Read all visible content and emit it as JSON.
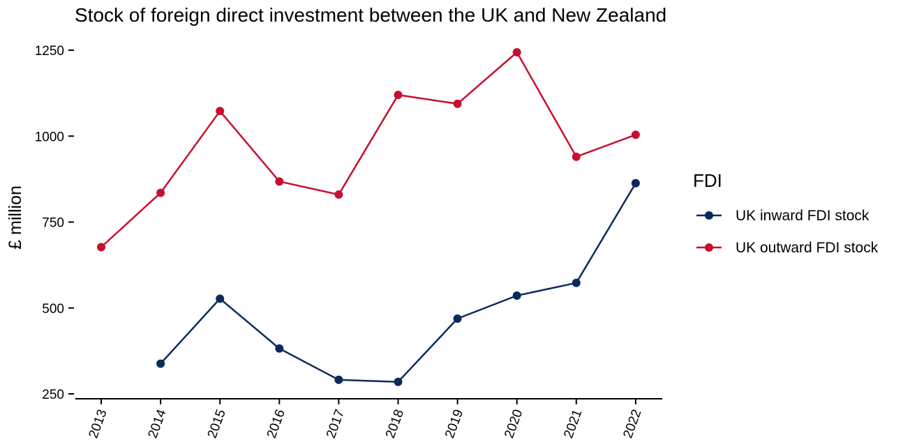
{
  "chart_data": {
    "type": "line",
    "title": "Stock of foreign direct investment between the UK and New Zealand",
    "xlabel": "",
    "ylabel": "£ million",
    "x": [
      "2013",
      "2014",
      "2015",
      "2016",
      "2017",
      "2018",
      "2019",
      "2020",
      "2021",
      "2022"
    ],
    "ylim": [
      250,
      1250
    ],
    "yticks": [
      250,
      500,
      750,
      1000,
      1250
    ],
    "grid": false,
    "legend": {
      "title": "FDI",
      "position": "right"
    },
    "series": [
      {
        "name": "UK inward FDI stock",
        "color": "#0b2a5b",
        "values": [
          null,
          338,
          527,
          382,
          291,
          285,
          469,
          536,
          573,
          863
        ]
      },
      {
        "name": "UK outward FDI stock",
        "color": "#c8102e",
        "values": [
          677,
          835,
          1073,
          868,
          830,
          1120,
          1094,
          1244,
          940,
          1004
        ]
      }
    ]
  }
}
